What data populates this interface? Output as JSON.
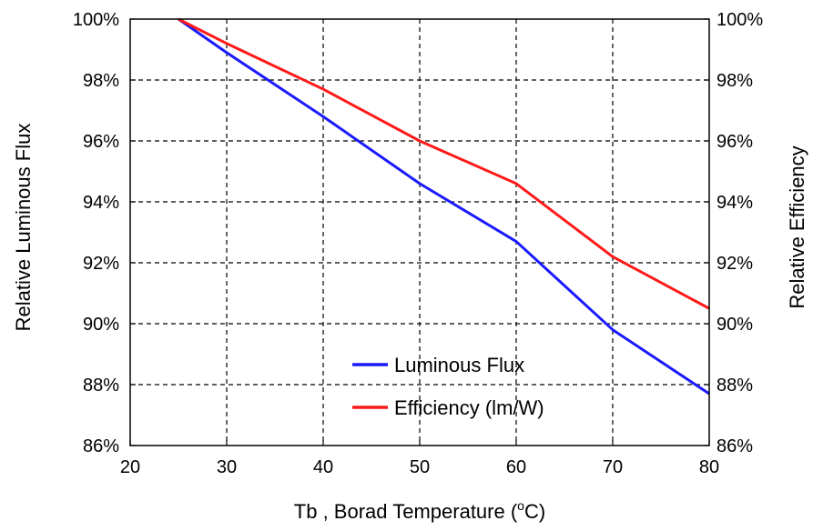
{
  "chart_data": {
    "type": "line",
    "xlabel": "Tb , Borad Temperature (",
    "xlabel_degree": "o",
    "xlabel_unit": "C)",
    "ylabel": "Relative Luminous Flux",
    "y2label": "Relative Efficiency",
    "xlim": [
      20,
      80
    ],
    "ylim": [
      86,
      100
    ],
    "y2lim": [
      86,
      100
    ],
    "x_ticks": [
      "20",
      "30",
      "40",
      "50",
      "60",
      "70",
      "80"
    ],
    "y_ticks": [
      "86%",
      "88%",
      "90%",
      "92%",
      "94%",
      "96%",
      "98%",
      "100%"
    ],
    "y2_ticks": [
      "86%",
      "88%",
      "90%",
      "92%",
      "94%",
      "96%",
      "98%",
      "100%"
    ],
    "grid": true,
    "legend_position": "bottom-center",
    "series": [
      {
        "name": "Luminous Flux",
        "color": "#1a1aff",
        "x": [
          25,
          30,
          40,
          50,
          60,
          70,
          80
        ],
        "y": [
          100,
          98.9,
          96.8,
          94.6,
          92.7,
          89.8,
          87.7
        ]
      },
      {
        "name": "Efficiency (lm/W)",
        "color": "#ff1a1a",
        "x": [
          25,
          30,
          40,
          50,
          60,
          70,
          80
        ],
        "y": [
          100,
          99.2,
          97.7,
          96.0,
          94.6,
          92.2,
          90.5
        ]
      }
    ]
  }
}
